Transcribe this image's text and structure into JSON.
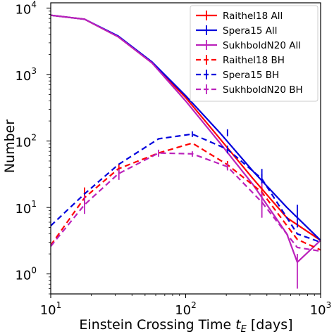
{
  "chart_data": {
    "type": "line",
    "xlabel": "Einstein Crossing Time t_E [days]",
    "xlabel_main": "Einstein Crossing Time ",
    "xlabel_sym": "t",
    "xlabel_sub": "E",
    "xlabel_unit": " [days]",
    "ylabel": "Number",
    "x_scale": "log",
    "y_scale": "log",
    "xlim": [
      10,
      1000
    ],
    "ylim": [
      0.5,
      12000
    ],
    "x_ticks": [
      {
        "value": 10,
        "base": "10",
        "exp": "1"
      },
      {
        "value": 100,
        "base": "10",
        "exp": "2"
      },
      {
        "value": 1000,
        "base": "10",
        "exp": "3"
      }
    ],
    "y_ticks": [
      {
        "value": 1,
        "base": "10",
        "exp": "0"
      },
      {
        "value": 10,
        "base": "10",
        "exp": "1"
      },
      {
        "value": 100,
        "base": "10",
        "exp": "2"
      },
      {
        "value": 1000,
        "base": "10",
        "exp": "3"
      },
      {
        "value": 10000,
        "base": "10",
        "exp": "4"
      }
    ],
    "legend_position": "top-right",
    "grid": false,
    "series": [
      {
        "name": "Raithel18 All",
        "color": "#ff0000",
        "dash": false,
        "x": [
          10,
          17.8,
          31.6,
          56.2,
          100,
          178,
          316,
          562,
          1000
        ],
        "y": [
          7800,
          6800,
          3700,
          1500,
          450,
          110,
          27,
          7,
          3.2
        ],
        "err_x": [],
        "err_lo": [],
        "err_hi": []
      },
      {
        "name": "Spera15 All",
        "color": "#0000dd",
        "dash": false,
        "x": [
          10,
          17.8,
          31.6,
          56.2,
          100,
          178,
          316,
          562,
          1000
        ],
        "y": [
          7800,
          6800,
          3800,
          1550,
          480,
          135,
          35,
          10,
          3.2
        ],
        "err_x": [
          204,
          367,
          672
        ],
        "err_lo": [
          118,
          28,
          5
        ],
        "err_hi": [
          150,
          38,
          11
        ]
      },
      {
        "name": "SukhboldN20 All",
        "color": "#bb22bb",
        "dash": false,
        "x": [
          10,
          17.8,
          31.6,
          56.2,
          100,
          178,
          316,
          562,
          672,
          1000
        ],
        "y": [
          7800,
          6800,
          3700,
          1500,
          400,
          95,
          22,
          4,
          1.5,
          3.2
        ],
        "err_x": [
          367,
          672
        ],
        "err_lo": [
          10,
          0.6
        ],
        "err_hi": [
          26,
          2
        ]
      },
      {
        "name": "Raithel18 BH",
        "color": "#ff0000",
        "dash": true,
        "x": [
          10,
          17.8,
          31.6,
          63,
          112,
          204,
          367,
          672,
          1000
        ],
        "y": [
          2.7,
          14,
          38,
          66,
          93,
          44,
          17,
          3.3,
          2.3
        ],
        "err_x": [
          17.8,
          32,
          204,
          367
        ],
        "err_lo": [
          11,
          32,
          38,
          14
        ],
        "err_hi": [
          20,
          45,
          50,
          20
        ]
      },
      {
        "name": "Spera15 BH",
        "color": "#0000dd",
        "dash": true,
        "x": [
          10,
          17.8,
          31.6,
          63,
          112,
          204,
          367,
          672,
          1000
        ],
        "y": [
          5.3,
          16,
          44,
          108,
          127,
          75,
          27,
          4,
          3
        ],
        "err_x": [
          112,
          204,
          367
        ],
        "err_lo": [
          115,
          65,
          23
        ],
        "err_hi": [
          140,
          85,
          32
        ]
      },
      {
        "name": "SukhboldN20 BH",
        "color": "#bb22bb",
        "dash": true,
        "x": [
          10,
          17.8,
          31.6,
          63,
          112,
          204,
          367,
          672,
          1000
        ],
        "y": [
          2.6,
          11,
          32,
          66,
          64,
          41,
          12,
          2.5,
          2.2
        ],
        "err_x": [
          17.8,
          32,
          63,
          112,
          204,
          367
        ],
        "err_lo": [
          8,
          26,
          58,
          58,
          36,
          7
        ],
        "err_hi": [
          15,
          38,
          74,
          70,
          46,
          17
        ]
      }
    ]
  }
}
